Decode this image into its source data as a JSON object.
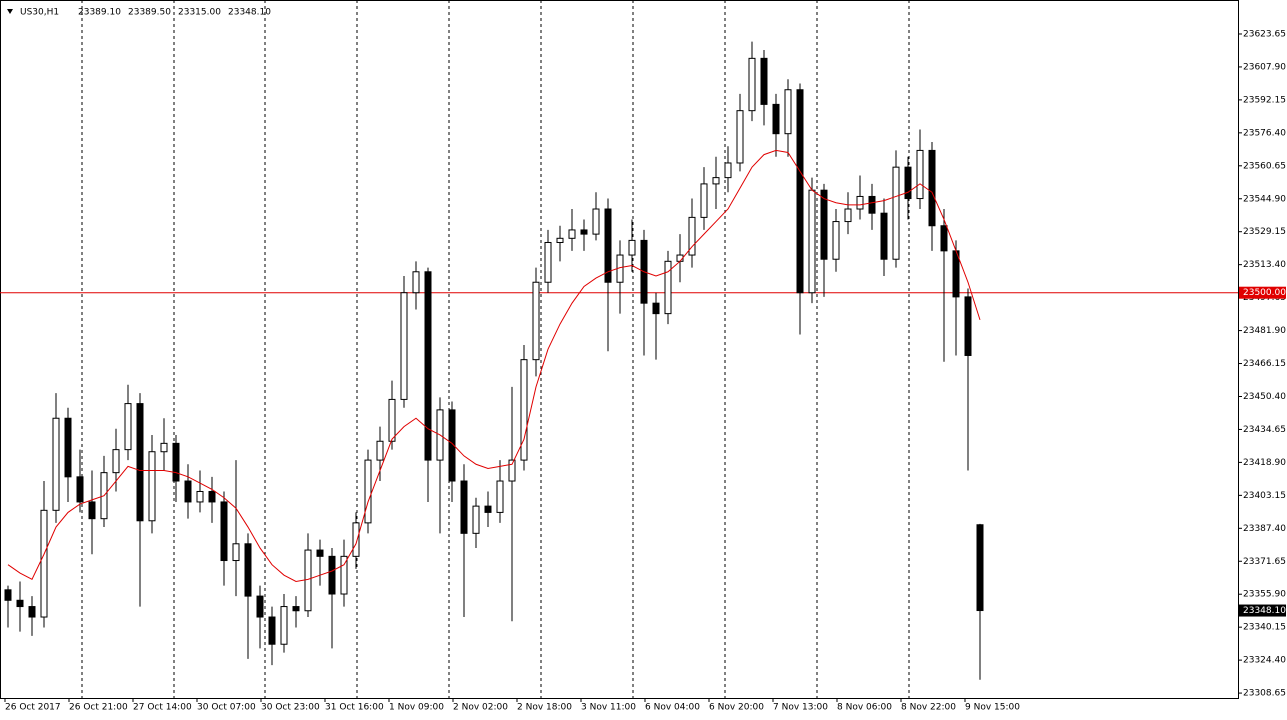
{
  "chart_data": {
    "type": "candlestick",
    "header": {
      "symbol": "US30,H1",
      "open": "23389.10",
      "high": "23389.50",
      "low": "23315.00",
      "close": "23348.10"
    },
    "ylim": [
      23306.3,
      23637.5
    ],
    "yticks": [
      23623.65,
      {
        "value": 23607.9,
        "label": "23607.90"
      },
      23592.15,
      {
        "value": 23576.4,
        "label": "23576.40"
      },
      23560.65,
      {
        "value": 23544.9,
        "label": "23544.90"
      },
      23529.15,
      {
        "value": 23513.4,
        "label": "23513.40"
      },
      23497.65,
      {
        "value": 23481.9,
        "label": "23481.90"
      },
      23466.15,
      {
        "value": 23450.4,
        "label": "23450.40"
      },
      23434.65,
      {
        "value": 23418.9,
        "label": "23418.90"
      },
      23403.15,
      {
        "value": 23387.4,
        "label": "23387.40"
      },
      23371.65,
      {
        "value": 23355.9,
        "label": "23355.90"
      },
      23340.15,
      {
        "value": 23324.4,
        "label": "23324.40"
      },
      23308.65
    ],
    "x_labels": [
      "26 Oct 2017",
      "26 Oct 21:00",
      "27 Oct 14:00",
      "30 Oct 07:00",
      "30 Oct 23:00",
      "31 Oct 16:00",
      "1 Nov 09:00",
      "2 Nov 02:00",
      "2 Nov 18:00",
      "3 Nov 11:00",
      "6 Nov 04:00",
      "6 Nov 20:00",
      "7 Nov 13:00",
      "8 Nov 06:00",
      "8 Nov 22:00",
      "9 Nov 15:00"
    ],
    "level": {
      "value": 23500,
      "label": "23500.00"
    },
    "price_label": "23348.10",
    "colors": {
      "bull": "#ffffff",
      "bear": "#000000",
      "outline": "#000000",
      "ma": "#e00000",
      "level": "#e00000"
    },
    "candles": [
      [
        23358,
        23360,
        23340,
        23353
      ],
      [
        23353,
        23362,
        23338,
        23350
      ],
      [
        23350,
        23355,
        23336,
        23345
      ],
      [
        23345,
        23410,
        23340,
        23396
      ],
      [
        23396,
        23452,
        23390,
        23440
      ],
      [
        23440,
        23445,
        23400,
        23412
      ],
      [
        23412,
        23425,
        23395,
        23400
      ],
      [
        23400,
        23415,
        23375,
        23392
      ],
      [
        23392,
        23422,
        23388,
        23414
      ],
      [
        23414,
        23435,
        23405,
        23425
      ],
      [
        23425,
        23456,
        23420,
        23447
      ],
      [
        23447,
        23452,
        23350,
        23391
      ],
      [
        23391,
        23432,
        23385,
        23424
      ],
      [
        23424,
        23440,
        23415,
        23428
      ],
      [
        23428,
        23432,
        23400,
        23410
      ],
      [
        23410,
        23418,
        23392,
        23400
      ],
      [
        23400,
        23415,
        23395,
        23405
      ],
      [
        23405,
        23412,
        23390,
        23400
      ],
      [
        23400,
        23405,
        23360,
        23372
      ],
      [
        23372,
        23420,
        23355,
        23380
      ],
      [
        23380,
        23385,
        23325,
        23355
      ],
      [
        23355,
        23360,
        23330,
        23345
      ],
      [
        23345,
        23350,
        23322,
        23332
      ],
      [
        23332,
        23356,
        23328,
        23350
      ],
      [
        23350,
        23355,
        23340,
        23348
      ],
      [
        23348,
        23385,
        23345,
        23377
      ],
      [
        23377,
        23382,
        23360,
        23374
      ],
      [
        23374,
        23378,
        23330,
        23356
      ],
      [
        23356,
        23382,
        23350,
        23374
      ],
      [
        23374,
        23395,
        23368,
        23390
      ],
      [
        23390,
        23425,
        23385,
        23420
      ],
      [
        23420,
        23436,
        23410,
        23429
      ],
      [
        23429,
        23458,
        23425,
        23449
      ],
      [
        23449,
        23508,
        23445,
        23500
      ],
      [
        23500,
        23515,
        23492,
        23510
      ],
      [
        23510,
        23512,
        23400,
        23420
      ],
      [
        23420,
        23450,
        23385,
        23444
      ],
      [
        23444,
        23448,
        23400,
        23410
      ],
      [
        23410,
        23418,
        23345,
        23385
      ],
      [
        23385,
        23402,
        23378,
        23398
      ],
      [
        23398,
        23405,
        23388,
        23395
      ],
      [
        23395,
        23420,
        23390,
        23410
      ],
      [
        23410,
        23455,
        23343,
        23420
      ],
      [
        23420,
        23475,
        23415,
        23468
      ],
      [
        23468,
        23512,
        23460,
        23505
      ],
      [
        23505,
        23530,
        23500,
        23524
      ],
      [
        23524,
        23532,
        23515,
        23526
      ],
      [
        23526,
        23540,
        23520,
        23530
      ],
      [
        23530,
        23535,
        23520,
        23528
      ],
      [
        23528,
        23548,
        23525,
        23540
      ],
      [
        23540,
        23545,
        23472,
        23505
      ],
      [
        23505,
        23525,
        23490,
        23518
      ],
      [
        23518,
        23535,
        23510,
        23525
      ],
      [
        23525,
        23530,
        23470,
        23495
      ],
      [
        23495,
        23500,
        23468,
        23490
      ],
      [
        23490,
        23520,
        23485,
        23515
      ],
      [
        23515,
        23528,
        23505,
        23518
      ],
      [
        23518,
        23545,
        23512,
        23536
      ],
      [
        23536,
        23560,
        23530,
        23552
      ],
      [
        23552,
        23565,
        23540,
        23555
      ],
      [
        23555,
        23570,
        23548,
        23562
      ],
      [
        23562,
        23595,
        23558,
        23587
      ],
      [
        23587,
        23620,
        23582,
        23612
      ],
      [
        23612,
        23616,
        23580,
        23590
      ],
      [
        23590,
        23595,
        23565,
        23576
      ],
      [
        23576,
        23602,
        23565,
        23597
      ],
      [
        23597,
        23600,
        23480,
        23500
      ],
      [
        23500,
        23555,
        23495,
        23549
      ],
      [
        23549,
        23552,
        23498,
        23516
      ],
      [
        23516,
        23540,
        23510,
        23534
      ],
      [
        23534,
        23548,
        23528,
        23540
      ],
      [
        23540,
        23556,
        23535,
        23546
      ],
      [
        23546,
        23552,
        23530,
        23538
      ],
      [
        23538,
        23545,
        23508,
        23516
      ],
      [
        23516,
        23568,
        23512,
        23560
      ],
      [
        23560,
        23565,
        23535,
        23545
      ],
      [
        23545,
        23578,
        23540,
        23568
      ],
      [
        23568,
        23572,
        23520,
        23532
      ],
      [
        23532,
        23540,
        23467,
        23520
      ],
      [
        23520,
        23525,
        23470,
        23498
      ],
      [
        23498,
        23502,
        23415,
        23470
      ],
      [
        23389.1,
        23389.5,
        23315,
        23348.1
      ]
    ],
    "ma": [
      23370,
      23366,
      23363,
      23375,
      23388,
      23395,
      23399,
      23401,
      23403,
      23410,
      23417,
      23415,
      23415,
      23415,
      23414,
      23412,
      23409,
      23406,
      23402,
      23397,
      23388,
      23378,
      23370,
      23365,
      23362,
      23363,
      23365,
      23367,
      23370,
      23380,
      23400,
      23415,
      23430,
      23436,
      23440,
      23435,
      23432,
      23428,
      23422,
      23418,
      23416,
      23417,
      23418,
      23430,
      23455,
      23473,
      23485,
      23495,
      23503,
      23507,
      23510,
      23512,
      23513,
      23510,
      23508,
      23510,
      23515,
      23522,
      23528,
      23534,
      23540,
      23550,
      23560,
      23566,
      23568,
      23567,
      23558,
      23549,
      23545,
      23543,
      23542,
      23542,
      23543,
      23544,
      23546,
      23548,
      23552,
      23548,
      23535,
      23520,
      23505,
      23487
    ]
  }
}
